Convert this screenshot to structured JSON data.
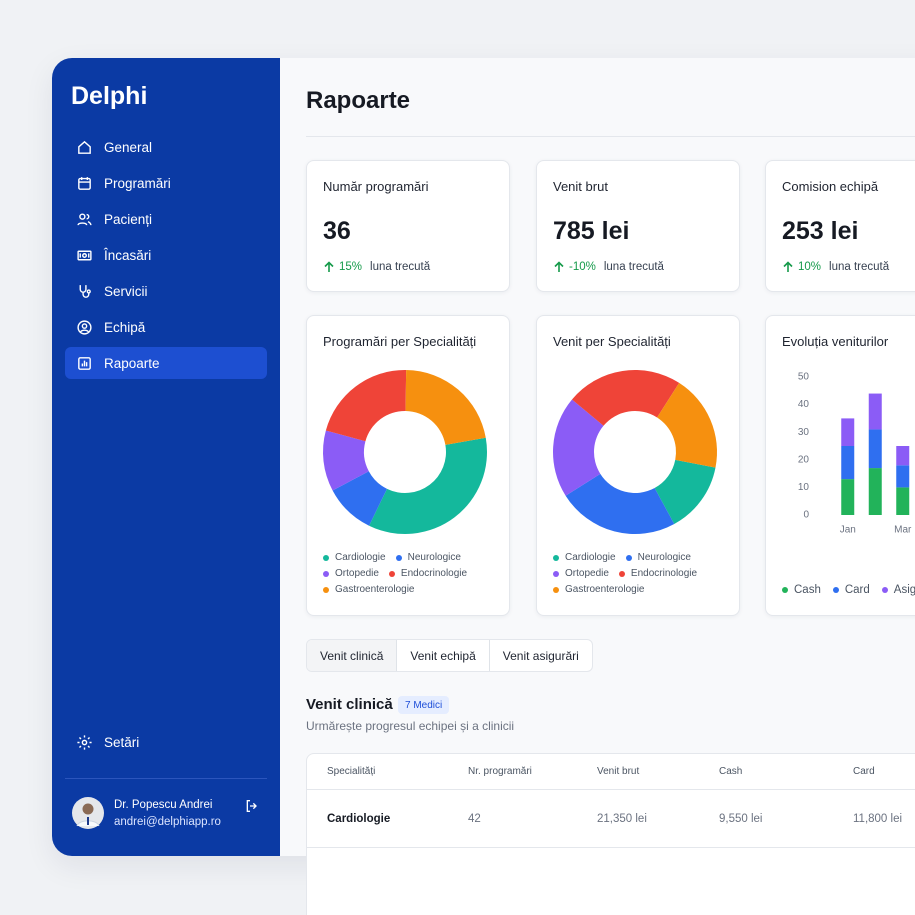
{
  "sidebar": {
    "brand": "Delphi",
    "nav": [
      "General",
      "Programări",
      "Pacienți",
      "Încasări",
      "Servicii",
      "Echipă",
      "Rapoarte"
    ],
    "settings": "Setări",
    "user": {
      "name": "Dr. Popescu Andrei",
      "email": "andrei@delphiapp.ro"
    }
  },
  "header": {
    "title": "Rapoarte"
  },
  "stats": [
    {
      "label": "Număr programări",
      "value": "36",
      "change": "15%",
      "period": "luna trecută"
    },
    {
      "label": "Venit brut",
      "value": "785 lei",
      "change": "-10%",
      "period": "luna trecută"
    },
    {
      "label": "Comision echipă",
      "value": "253 lei",
      "change": "10%",
      "period": "luna trecută"
    }
  ],
  "charts": [
    {
      "type": "donut",
      "title": "Programări per Specialități",
      "series": [
        {
          "name": "Cardiologie",
          "color": "#14b89c",
          "value": 35
        },
        {
          "name": "Neurologice",
          "color": "#2f6ff0",
          "value": 10
        },
        {
          "name": "Ortopedie",
          "color": "#8b5cf6",
          "value": 12
        },
        {
          "name": "Endocrinologie",
          "color": "#ef4438",
          "value": 21
        },
        {
          "name": "Gastroenterologie",
          "color": "#f6900f",
          "value": 22
        }
      ]
    },
    {
      "type": "donut",
      "title": "Venit per Specialități",
      "series": [
        {
          "name": "Cardiologie",
          "color": "#14b89c",
          "value": 14
        },
        {
          "name": "Neurologice",
          "color": "#2f6ff0",
          "value": 24
        },
        {
          "name": "Ortopedie",
          "color": "#8b5cf6",
          "value": 20
        },
        {
          "name": "Endocrinologie",
          "color": "#ef4438",
          "value": 23
        },
        {
          "name": "Gastroenterologie",
          "color": "#f6900f",
          "value": 19
        }
      ]
    },
    {
      "type": "bar",
      "title": "Evoluția veniturilor",
      "categories": [
        "Jan",
        null,
        "Mar"
      ],
      "ylim": [
        0,
        50
      ],
      "yticks": [
        0,
        10,
        20,
        30,
        40,
        50
      ],
      "series": [
        {
          "name": "Cash",
          "color": "#22b35a",
          "values": [
            13,
            17,
            10
          ]
        },
        {
          "name": "Card",
          "color": "#2f6ff0",
          "values": [
            12,
            14,
            8
          ]
        },
        {
          "name": "Asigurări",
          "color": "#8b5cf6",
          "values": [
            10,
            13,
            7
          ]
        }
      ]
    }
  ],
  "tabs": [
    "Venit clinică",
    "Venit echipă",
    "Venit asigurări"
  ],
  "section": {
    "title": "Venit clinică",
    "badge": "7 Medici",
    "subtitle": "Urmărește progresul echipei și a clinicii"
  },
  "table": {
    "columns": [
      "Specialități",
      "Nr. programări",
      "Venit brut",
      "Cash",
      "Card"
    ],
    "rows": [
      [
        "Cardiologie",
        "42",
        "21,350 lei",
        "9,550 lei",
        "11,800 lei"
      ]
    ]
  }
}
